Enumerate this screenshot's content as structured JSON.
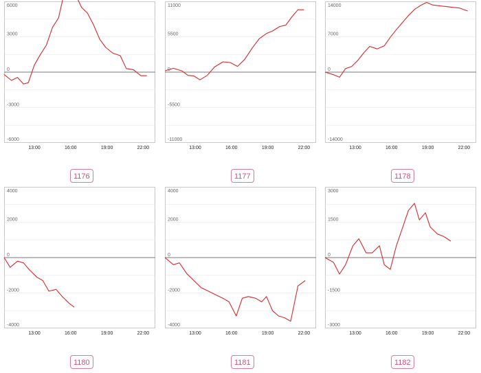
{
  "colors": {
    "line": "#d9262b",
    "frame": "#c9c9c9",
    "grid": "#ececec",
    "zero_line": "#777777",
    "label_border": "#d97a9a",
    "label_text": "#c8507a"
  },
  "chart_data": [
    {
      "type": "line",
      "label": "1176",
      "x_ticks": [
        "13:00",
        "16:00",
        "19:00",
        "22:00"
      ],
      "y_ticks": [
        "6000",
        "3000",
        "0",
        "-3000",
        "-6000"
      ],
      "ylim": [
        -6000,
        6000
      ],
      "x_range": [
        10.5,
        23
      ],
      "grid": true,
      "x": [
        10.5,
        11.1,
        11.6,
        12.1,
        12.5,
        13.0,
        13.5,
        14.0,
        14.5,
        15.0,
        15.4,
        15.9,
        16.4,
        16.9,
        17.4,
        17.9,
        18.4,
        18.9,
        19.5,
        20.1,
        20.6,
        21.2,
        21.8,
        22.3
      ],
      "values": [
        -200,
        -700,
        -450,
        -1000,
        -900,
        600,
        1500,
        2300,
        3800,
        4600,
        6400,
        6900,
        6600,
        5500,
        5000,
        4000,
        2800,
        2100,
        1600,
        1400,
        300,
        200,
        -300,
        -300
      ]
    },
    {
      "type": "line",
      "label": "1177",
      "x_ticks": [
        "13:00",
        "16:00",
        "19:00",
        "22:00"
      ],
      "y_ticks": [
        "11000",
        "5500",
        "0",
        "-5500",
        "-11000"
      ],
      "ylim": [
        -11000,
        11000
      ],
      "x_range": [
        10.5,
        23
      ],
      "grid": true,
      "x": [
        10.5,
        11.2,
        11.9,
        12.4,
        12.9,
        13.4,
        14.0,
        14.6,
        15.3,
        15.9,
        16.5,
        17.1,
        17.7,
        18.3,
        18.9,
        19.4,
        20.0,
        20.5,
        21.0,
        21.5,
        22.0
      ],
      "values": [
        200,
        600,
        200,
        -500,
        -600,
        -1200,
        -500,
        800,
        1600,
        1500,
        900,
        2000,
        3700,
        5200,
        6000,
        6400,
        7100,
        7300,
        8600,
        9700,
        9700
      ]
    },
    {
      "type": "line",
      "label": "1178",
      "x_ticks": [
        "13:00",
        "16:00",
        "19:00",
        "22:00"
      ],
      "y_ticks": [
        "14000",
        "7000",
        "0",
        "-14000"
      ],
      "ylim": [
        -14000,
        14000
      ],
      "x_range": [
        10.5,
        23
      ],
      "grid": true,
      "x": [
        10.5,
        11.2,
        11.7,
        12.2,
        12.7,
        13.2,
        13.7,
        14.2,
        14.8,
        15.4,
        15.9,
        16.4,
        16.9,
        17.4,
        17.9,
        18.4,
        18.9,
        19.4,
        20.0,
        20.5,
        21.1,
        21.6,
        22.3
      ],
      "values": [
        0,
        -500,
        -1000,
        700,
        1100,
        2300,
        3800,
        5100,
        4600,
        5200,
        6900,
        8400,
        9800,
        11200,
        12400,
        13200,
        13800,
        13300,
        13100,
        13000,
        12800,
        12700,
        12100
      ]
    },
    {
      "type": "line",
      "label": "1180",
      "x_ticks": [
        "13:00",
        "16:00",
        "19:00",
        "22:00"
      ],
      "y_ticks": [
        "4000",
        "2000",
        "0",
        "-2000",
        "-4000"
      ],
      "ylim": [
        -4000,
        4000
      ],
      "x_range": [
        10.5,
        23
      ],
      "grid": true,
      "x": [
        10.5,
        11.0,
        11.6,
        12.1,
        12.6,
        13.2,
        13.7,
        14.2,
        14.8,
        15.3,
        15.9,
        16.3
      ],
      "values": [
        0,
        -550,
        -200,
        -300,
        -700,
        -1100,
        -1300,
        -1900,
        -1800,
        -2200,
        -2600,
        -2800
      ]
    },
    {
      "type": "line",
      "label": "1181",
      "x_ticks": [
        "13:00",
        "16:00",
        "19:00",
        "22:00"
      ],
      "y_ticks": [
        "4000",
        "2000",
        "0",
        "-2000",
        "-4000"
      ],
      "ylim": [
        -4000,
        4000
      ],
      "x_range": [
        10.5,
        23
      ],
      "grid": true,
      "x": [
        10.5,
        11.2,
        11.7,
        12.3,
        12.9,
        13.5,
        14.1,
        14.7,
        15.3,
        15.8,
        16.4,
        16.9,
        17.4,
        18.0,
        18.5,
        18.9,
        19.4,
        19.9,
        20.4,
        20.9,
        21.5,
        22.1
      ],
      "values": [
        0,
        -400,
        -300,
        -900,
        -1300,
        -1700,
        -1900,
        -2100,
        -2300,
        -2500,
        -3300,
        -2300,
        -2200,
        -2300,
        -2500,
        -2200,
        -3000,
        -3300,
        -3400,
        -3600,
        -1600,
        -1300
      ]
    },
    {
      "type": "line",
      "label": "1182",
      "x_ticks": [
        "13:00",
        "16:00",
        "19:00",
        "22:00"
      ],
      "y_ticks": [
        "3000",
        "1500",
        "0",
        "-1500",
        "-3000"
      ],
      "ylim": [
        -3000,
        3000
      ],
      "x_range": [
        10.5,
        23
      ],
      "grid": true,
      "x": [
        10.5,
        11.2,
        11.7,
        12.2,
        12.8,
        13.3,
        13.9,
        14.4,
        15.0,
        15.4,
        15.9,
        16.4,
        17.0,
        17.4,
        17.9,
        18.3,
        18.8,
        19.2,
        19.8,
        20.3,
        20.9
      ],
      "values": [
        0,
        -200,
        -700,
        -300,
        500,
        800,
        200,
        200,
        500,
        -300,
        -500,
        500,
        1400,
        2000,
        2300,
        1600,
        1900,
        1300,
        1000,
        900,
        700
      ]
    }
  ]
}
